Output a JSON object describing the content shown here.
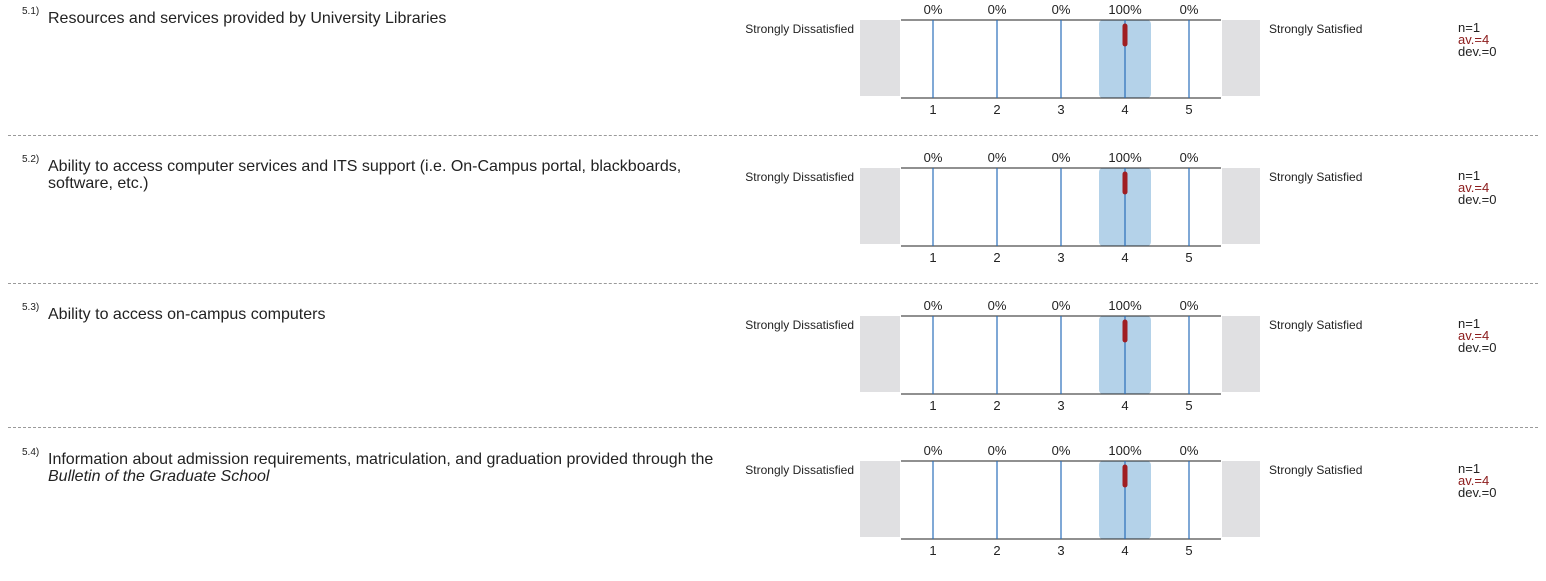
{
  "chart_data": {
    "type": "bar",
    "categories": [
      "1",
      "2",
      "3",
      "4",
      "5"
    ],
    "scale_left_label": "Strongly Dissatisfied",
    "scale_right_label": "Strongly Satisfied",
    "items": [
      {
        "number": "5.1)",
        "question": "Resources and services provided by University Libraries",
        "question_italic": "",
        "question_tail": "",
        "percentages": [
          "0%",
          "0%",
          "0%",
          "100%",
          "0%"
        ],
        "values": [
          0,
          0,
          0,
          100,
          0
        ],
        "mean": 4,
        "n_text": "n=1",
        "av_text": "av.=4",
        "dev_text": "dev.=0"
      },
      {
        "number": "5.2)",
        "question": "Ability to access computer services and ITS support (i.e. On-Campus portal, blackboards, software, etc.)",
        "question_italic": "",
        "question_tail": "",
        "percentages": [
          "0%",
          "0%",
          "0%",
          "100%",
          "0%"
        ],
        "values": [
          0,
          0,
          0,
          100,
          0
        ],
        "mean": 4,
        "n_text": "n=1",
        "av_text": "av.=4",
        "dev_text": "dev.=0"
      },
      {
        "number": "5.3)",
        "question": "Ability to access on-campus computers",
        "question_italic": "",
        "question_tail": "",
        "percentages": [
          "0%",
          "0%",
          "0%",
          "100%",
          "0%"
        ],
        "values": [
          0,
          0,
          0,
          100,
          0
        ],
        "mean": 4,
        "n_text": "n=1",
        "av_text": "av.=4",
        "dev_text": "dev.=0"
      },
      {
        "number": "5.4)",
        "question": "Information about admission requirements, matriculation, and graduation provided through the ",
        "question_italic": "Bulletin of the Graduate School",
        "question_tail": "",
        "percentages": [
          "0%",
          "0%",
          "0%",
          "100%",
          "0%"
        ],
        "values": [
          0,
          0,
          0,
          100,
          0
        ],
        "mean": 4,
        "n_text": "n=1",
        "av_text": "av.=4",
        "dev_text": "dev.=0"
      }
    ]
  }
}
